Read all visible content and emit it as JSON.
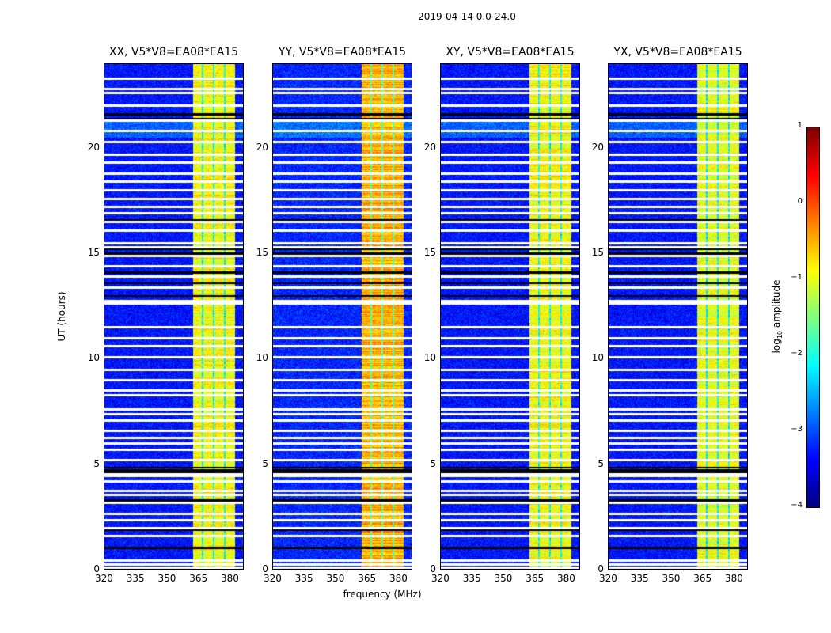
{
  "chart_data": {
    "type": "heatmap",
    "title": "2019-04-14 0.0-24.0",
    "xlabel": "frequency (MHz)",
    "ylabel": "UT (hours)",
    "xlim": [
      320,
      386.8
    ],
    "ylim": [
      0,
      24
    ],
    "xticks": [
      "320",
      "335",
      "350",
      "365",
      "380"
    ],
    "yticks": [
      "0",
      "5",
      "10",
      "15",
      "20"
    ],
    "colorbar": {
      "label_prefix": "log",
      "label_sub": "10",
      "label_suffix": " amplitude",
      "range": [
        -4,
        1
      ],
      "ticks": [
        "1",
        "0",
        "−1",
        "−2",
        "−3",
        "−4"
      ],
      "colormap": "jet"
    },
    "panels": [
      {
        "title": "XX, V5*V8=EA08*EA15",
        "background_log_amp": -3.3,
        "band_log_amp": -0.9
      },
      {
        "title": "YY, V5*V8=EA08*EA15",
        "background_log_amp": -3.2,
        "band_log_amp": -0.5
      },
      {
        "title": "XY, V5*V8=EA08*EA15",
        "background_log_amp": -3.3,
        "band_log_amp": -0.9
      },
      {
        "title": "YX, V5*V8=EA08*EA15",
        "background_log_amp": -3.3,
        "band_log_amp": -1.0
      }
    ],
    "rfi_band_mhz": [
      362.3,
      382.6
    ],
    "band_gaps_mhz": [
      367.0,
      372.3,
      377.6
    ],
    "flagged_ut_hours": [
      0.1,
      0.25,
      0.45,
      1.6,
      2.0,
      2.35,
      2.65,
      3.2,
      3.55,
      3.75,
      4.2,
      4.45,
      4.55,
      5.2,
      5.7,
      6.0,
      6.25,
      6.6,
      7.1,
      7.4,
      7.6,
      8.3,
      8.5,
      9.0,
      9.5,
      10.1,
      10.6,
      11.0,
      11.5,
      12.65,
      12.75,
      13.4,
      13.9,
      14.4,
      14.9,
      15.3,
      15.5,
      16.1,
      16.5,
      16.9,
      17.2,
      17.6,
      18.0,
      18.4,
      18.8,
      19.3,
      19.7,
      20.3,
      20.8,
      21.3,
      22.0,
      22.6,
      22.8,
      23.3
    ],
    "dead_ut_hours": [
      1.05,
      1.9,
      3.3,
      4.65,
      4.75,
      4.85,
      13.0,
      13.6,
      14.1,
      15.0,
      15.2,
      16.6,
      21.4,
      21.6
    ]
  }
}
